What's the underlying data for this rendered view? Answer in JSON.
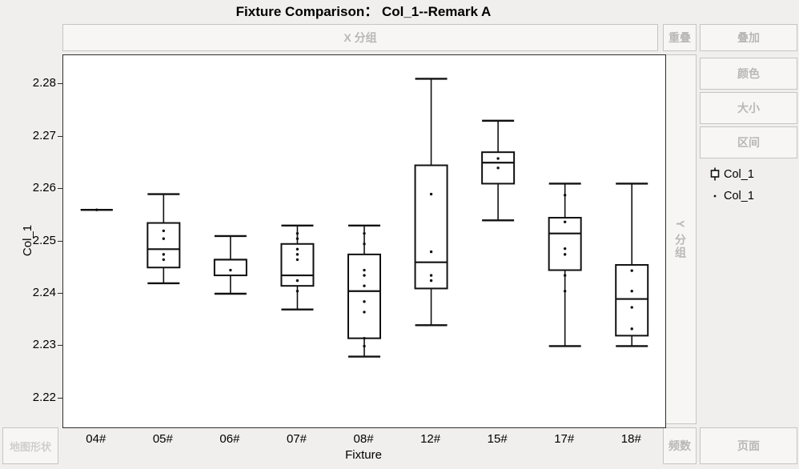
{
  "title": "Fixture Comparison： Col_1--Remark A",
  "drop_zones": {
    "x_group": "X 分组",
    "overlap": "重叠",
    "overlay": "叠加",
    "color": "颜色",
    "size": "大小",
    "interval": "区间",
    "y_group": "Y 分组",
    "frequency": "频数",
    "page": "页面",
    "map_shape": "地图形状"
  },
  "legend": {
    "items": [
      {
        "glyph": "boxplot-icon",
        "label": "Col_1"
      },
      {
        "glyph": "dot-icon",
        "label": "Col_1"
      }
    ]
  },
  "colors": {
    "plot_stroke": "#111111",
    "frame": "#2e2e2e",
    "zone_text": "#b9b8b6",
    "background": "#f0efee"
  },
  "chart_data": {
    "type": "box",
    "title": "Fixture Comparison： Col_1--Remark A",
    "xlabel": "Fixture",
    "ylabel": "Col_1",
    "categories": [
      "04#",
      "05#",
      "06#",
      "07#",
      "08#",
      "12#",
      "15#",
      "17#",
      "18#"
    ],
    "yticks": [
      2.22,
      2.23,
      2.24,
      2.25,
      2.26,
      2.27,
      2.28
    ],
    "ylim": [
      2.2145,
      2.2855
    ],
    "grid": false,
    "legend_position": "right",
    "groups": [
      {
        "label": "04#",
        "low": 2.256,
        "q1": 2.256,
        "median": 2.256,
        "q3": 2.256,
        "high": 2.256,
        "points": [
          2.256
        ]
      },
      {
        "label": "05#",
        "low": 2.242,
        "q1": 2.245,
        "median": 2.2485,
        "q3": 2.2535,
        "high": 2.259,
        "points": [
          2.252,
          2.2505,
          2.2475,
          2.2465
        ]
      },
      {
        "label": "06#",
        "low": 2.24,
        "q1": 2.2435,
        "median": 2.2465,
        "q3": 2.2465,
        "high": 2.251,
        "points": [
          2.2445
        ]
      },
      {
        "label": "07#",
        "low": 2.237,
        "q1": 2.2415,
        "median": 2.2435,
        "q3": 2.2495,
        "high": 2.253,
        "points": [
          2.2515,
          2.2505,
          2.2485,
          2.2475,
          2.2465,
          2.2425,
          2.2405
        ]
      },
      {
        "label": "08#",
        "low": 2.228,
        "q1": 2.2315,
        "median": 2.2405,
        "q3": 2.2475,
        "high": 2.253,
        "points": [
          2.2515,
          2.2495,
          2.2445,
          2.2435,
          2.2415,
          2.2385,
          2.2365,
          2.2315,
          2.23
        ]
      },
      {
        "label": "12#",
        "low": 2.234,
        "q1": 2.241,
        "median": 2.246,
        "q3": 2.2645,
        "high": 2.281,
        "points": [
          2.259,
          2.248,
          2.2435,
          2.2425
        ]
      },
      {
        "label": "15#",
        "low": 2.254,
        "q1": 2.261,
        "median": 2.265,
        "q3": 2.267,
        "high": 2.273,
        "points": [
          2.2658,
          2.264
        ]
      },
      {
        "label": "17#",
        "low": 2.23,
        "q1": 2.2445,
        "median": 2.2515,
        "q3": 2.2545,
        "high": 2.261,
        "points": [
          2.2588,
          2.2537,
          2.2486,
          2.2475,
          2.2435,
          2.2405
        ]
      },
      {
        "label": "18#",
        "low": 2.23,
        "q1": 2.232,
        "median": 2.239,
        "q3": 2.2455,
        "high": 2.261,
        "points": [
          2.2444,
          2.2405,
          2.2374,
          2.2333
        ]
      }
    ]
  }
}
